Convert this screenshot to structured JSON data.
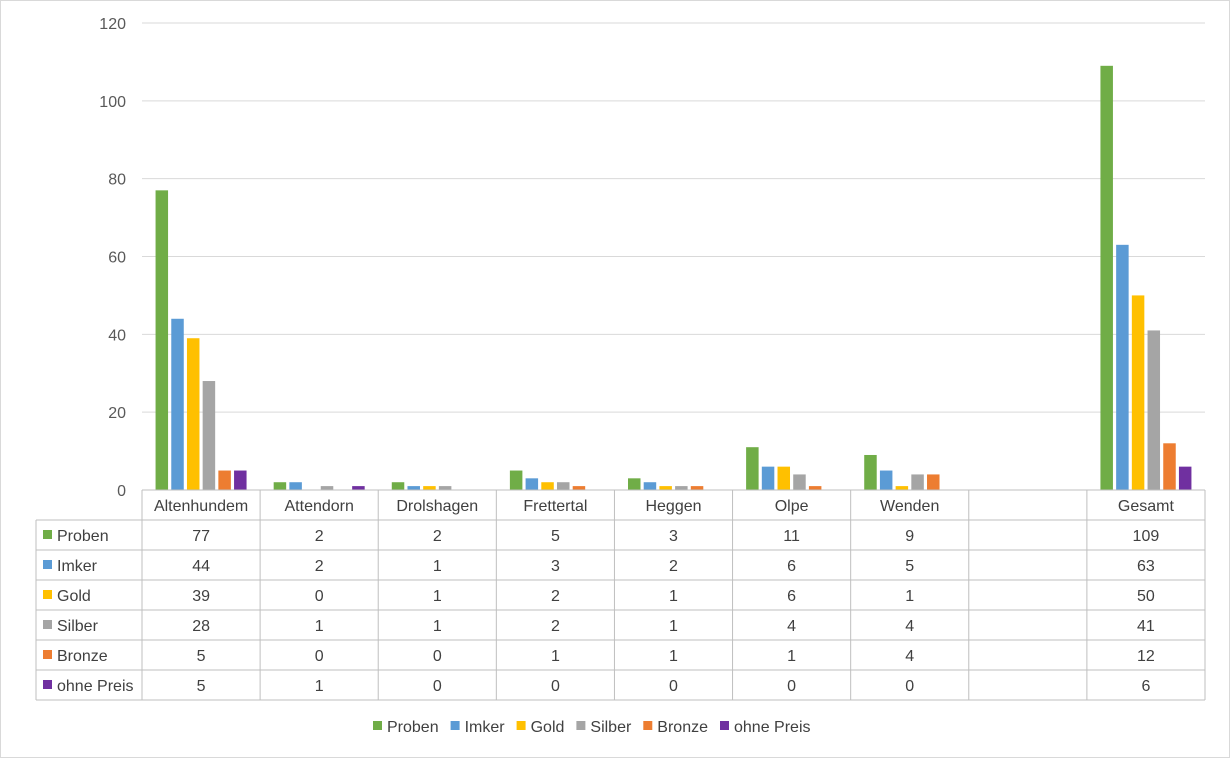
{
  "chart_data": {
    "type": "bar",
    "categories": [
      "Altenhundem",
      "Attendorn",
      "Drolshagen",
      "Frettertal",
      "Heggen",
      "Olpe",
      "Wenden",
      "",
      "Gesamt"
    ],
    "series": [
      {
        "name": "Proben",
        "color": "#70ad47",
        "values": [
          77,
          2,
          2,
          5,
          3,
          11,
          9,
          null,
          109
        ]
      },
      {
        "name": "Imker",
        "color": "#5b9bd5",
        "values": [
          44,
          2,
          1,
          3,
          2,
          6,
          5,
          null,
          63
        ]
      },
      {
        "name": "Gold",
        "color": "#ffc000",
        "values": [
          39,
          0,
          1,
          2,
          1,
          6,
          1,
          null,
          50
        ]
      },
      {
        "name": "Silber",
        "color": "#a5a5a5",
        "values": [
          28,
          1,
          1,
          2,
          1,
          4,
          4,
          null,
          41
        ]
      },
      {
        "name": "Bronze",
        "color": "#ed7d31",
        "values": [
          5,
          0,
          0,
          1,
          1,
          1,
          4,
          null,
          12
        ]
      },
      {
        "name": "ohne Preis",
        "color": "#7030a0",
        "values": [
          5,
          1,
          0,
          0,
          0,
          0,
          0,
          null,
          6
        ]
      }
    ],
    "yticks": [
      "0",
      "20",
      "40",
      "60",
      "80",
      "100",
      "120"
    ],
    "ylim": [
      0,
      120
    ],
    "grid": true,
    "legend": "bottom",
    "data_table": true
  }
}
